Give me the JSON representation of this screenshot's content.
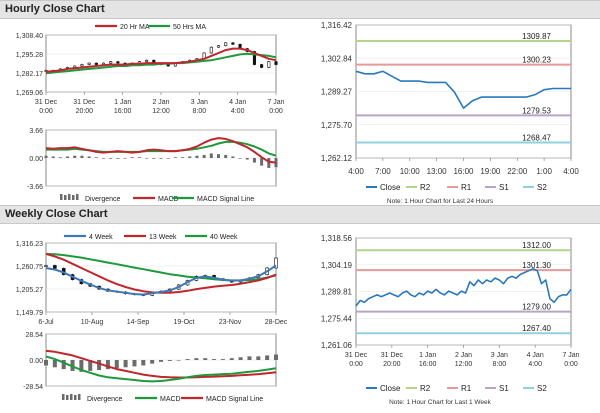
{
  "sections": {
    "hourly_title": "Hourly Close Chart",
    "weekly_title": "Weekly Close Chart"
  },
  "colors": {
    "ma_red": "#c0262d",
    "ma_green": "#1e9a3c",
    "macd_blue": "#3f78b6",
    "bar_gray": "#6b6b6b",
    "close_blue": "#2a78bd",
    "r2": "#b4d48a",
    "r1": "#e59a99",
    "s1": "#b7a4c9",
    "s2": "#8fd0dd"
  },
  "chart_data": [
    {
      "id": "hourly_price",
      "type": "line",
      "legend": [
        "20 Hr MA",
        "50 Hrs MA"
      ],
      "yticks": [
        "1,308.40",
        "1,295.28",
        "1,282.17",
        "1,269.06"
      ],
      "ylim": [
        1269.06,
        1308.4
      ],
      "xticks": [
        [
          "31 Dec",
          "0:00"
        ],
        [
          "31 Dec",
          "20:00"
        ],
        [
          "1 Jan",
          "16:00"
        ],
        [
          "2 Jan",
          "12:00"
        ],
        [
          "3 Jan",
          "8:00"
        ],
        [
          "4 Jan",
          "4:00"
        ],
        [
          "7 Jan",
          "0:00"
        ]
      ],
      "close": [
        1284,
        1283,
        1285,
        1286,
        1287,
        1288,
        1289,
        1288,
        1289,
        1290,
        1289,
        1288,
        1289,
        1290,
        1291,
        1289,
        1288,
        1287,
        1289,
        1290,
        1291,
        1292,
        1296,
        1300,
        1301,
        1303,
        1302,
        1299,
        1297,
        1288,
        1286,
        1290,
        1288
      ],
      "ma20": [
        1283,
        1283.5,
        1284,
        1285,
        1285.5,
        1286,
        1286.5,
        1287,
        1287.5,
        1288,
        1288,
        1288,
        1288.5,
        1288.5,
        1289,
        1289,
        1289,
        1289,
        1289,
        1289.5,
        1290,
        1291,
        1292,
        1294,
        1296,
        1298,
        1299,
        1299,
        1298,
        1296,
        1294,
        1292,
        1291
      ],
      "ma50": [
        1282,
        1282.5,
        1283,
        1283.5,
        1284,
        1284.5,
        1285,
        1285.5,
        1286,
        1286.5,
        1287,
        1287,
        1287.5,
        1287.5,
        1288,
        1288,
        1288.5,
        1288.5,
        1289,
        1289,
        1289.5,
        1290,
        1290.5,
        1291,
        1292,
        1293,
        1294,
        1295,
        1295.5,
        1295,
        1294.5,
        1294,
        1293
      ]
    },
    {
      "id": "hourly_macd",
      "type": "bar",
      "legend": [
        "Divergence",
        "MACD",
        "MACD Signal Line"
      ],
      "yticks": [
        "3.66",
        "0.00",
        "-3.66"
      ],
      "ylim": [
        -3.66,
        3.66
      ],
      "divergence": [
        0.3,
        0.2,
        0.1,
        0.2,
        0.3,
        0.3,
        0.2,
        0.1,
        0.0,
        -0.1,
        -0.1,
        0.0,
        0.1,
        0.1,
        0.0,
        -0.1,
        -0.1,
        0.0,
        0.1,
        0.1,
        0.2,
        0.3,
        0.4,
        0.6,
        0.5,
        0.4,
        0.2,
        0.0,
        -0.2,
        -0.6,
        -1.0,
        -1.3,
        -1.2
      ],
      "macd": [
        1.3,
        1.2,
        1.3,
        1.3,
        1.4,
        1.2,
        1.0,
        0.8,
        0.7,
        0.8,
        0.9,
        0.8,
        0.7,
        0.8,
        1.0,
        1.1,
        1.0,
        0.9,
        0.9,
        1.0,
        1.2,
        1.5,
        2.0,
        2.4,
        2.6,
        2.5,
        2.2,
        1.8,
        1.4,
        0.8,
        0.1,
        -0.5,
        -0.6
      ],
      "signal": [
        1.1,
        1.1,
        1.1,
        1.1,
        1.2,
        1.1,
        1.0,
        0.9,
        0.8,
        0.8,
        0.8,
        0.8,
        0.8,
        0.8,
        0.9,
        0.9,
        0.9,
        0.9,
        0.9,
        1.0,
        1.1,
        1.2,
        1.4,
        1.6,
        1.9,
        2.1,
        2.1,
        2.0,
        1.8,
        1.5,
        1.1,
        0.6,
        0.3
      ]
    },
    {
      "id": "hourly_pivot",
      "type": "line",
      "legend": [
        "Close",
        "R2",
        "R1",
        "S1",
        "S2"
      ],
      "note": "Note: 1 Hour Chart for Last 24 Hours",
      "yticks": [
        "1,316.42",
        "1,302.84",
        "1,289.27",
        "1,275.70",
        "1,262.12"
      ],
      "ylim": [
        1262.12,
        1316.42
      ],
      "xticks": [
        "4:00",
        "7:00",
        "10:00",
        "13:00",
        "16:00",
        "19:00",
        "22:00",
        "1:00",
        "4:00"
      ],
      "levels": {
        "R2": 1309.87,
        "R1": 1300.23,
        "S1": 1279.53,
        "S2": 1268.47
      },
      "level_labels": {
        "R2": "1309.87",
        "R1": "1300.23",
        "S1": "1279.53",
        "S2": "1268.47"
      },
      "close": [
        1297.5,
        1296.5,
        1296.5,
        1297.5,
        1295.5,
        1293.5,
        1293.5,
        1293.5,
        1293.0,
        1293.0,
        1293.0,
        1289.0,
        1282.5,
        1285.5,
        1287.0,
        1287.0,
        1287.0,
        1287.0,
        1287.0,
        1287.0,
        1288.0,
        1290.0,
        1290.5,
        1290.5,
        1290.5
      ]
    },
    {
      "id": "weekly_price",
      "type": "line",
      "legend": [
        "4 Week",
        "13 Week",
        "40 Week"
      ],
      "yticks": [
        "1,316.23",
        "1,260.75",
        "1,205.27",
        "1,149.79"
      ],
      "ylim": [
        1149.79,
        1316.23
      ],
      "xticks": [
        "6-Jul",
        "10-Aug",
        "14-Sep",
        "19-Oct",
        "23-Nov",
        "28-Dec"
      ],
      "close": [
        1262,
        1255,
        1240,
        1228,
        1218,
        1212,
        1205,
        1200,
        1198,
        1194,
        1192,
        1190,
        1196,
        1200,
        1205,
        1215,
        1226,
        1236,
        1238,
        1230,
        1226,
        1222,
        1226,
        1232,
        1240,
        1256,
        1280
      ],
      "ma4": [
        1256,
        1252,
        1245,
        1235,
        1225,
        1216,
        1208,
        1202,
        1199,
        1196,
        1193,
        1192,
        1195,
        1198,
        1202,
        1210,
        1222,
        1232,
        1236,
        1232,
        1228,
        1225,
        1226,
        1230,
        1236,
        1248,
        1262
      ],
      "ma13": [
        1290,
        1284,
        1276,
        1266,
        1256,
        1246,
        1236,
        1226,
        1217,
        1210,
        1204,
        1200,
        1197,
        1196,
        1196,
        1198,
        1201,
        1205,
        1208,
        1211,
        1213,
        1215,
        1218,
        1222,
        1226,
        1232,
        1240
      ],
      "ma40": [
        1290,
        1289,
        1287,
        1284,
        1281,
        1277,
        1273,
        1269,
        1265,
        1261,
        1257,
        1253,
        1249,
        1245,
        1241,
        1238,
        1235,
        1233,
        1231,
        1229,
        1227,
        1226,
        1226,
        1227,
        1229,
        1233,
        1238
      ]
    },
    {
      "id": "weekly_macd",
      "type": "bar",
      "legend": [
        "Divergence",
        "MACD",
        "MACD Signal Line"
      ],
      "yticks": [
        "28.54",
        "0.00",
        "-28.54"
      ],
      "ylim": [
        -28.54,
        28.54
      ],
      "divergence": [
        -6,
        -8,
        -10,
        -12,
        -13,
        -12,
        -11,
        -10,
        -9,
        -8,
        -7,
        -6,
        -4,
        -2,
        -1,
        0,
        1,
        2,
        2,
        1,
        1,
        2,
        3,
        4,
        4,
        5,
        6
      ],
      "macd": [
        4,
        1,
        -3,
        -7,
        -11,
        -14,
        -17,
        -19,
        -20,
        -21,
        -22,
        -23,
        -23.5,
        -23,
        -22,
        -20.5,
        -19,
        -17.5,
        -16.5,
        -16,
        -15.5,
        -15,
        -14,
        -13,
        -12,
        -10.5,
        -9
      ],
      "signal": [
        10,
        9,
        7,
        5,
        2,
        -1,
        -4,
        -7,
        -10,
        -12,
        -14,
        -16,
        -17.5,
        -18.5,
        -19,
        -19.2,
        -19.2,
        -19,
        -18.6,
        -18.2,
        -17.8,
        -17.4,
        -16.8,
        -16.2,
        -15.5,
        -14.5,
        -13.5
      ]
    },
    {
      "id": "weekly_pivot",
      "type": "line",
      "legend": [
        "Close",
        "R2",
        "R1",
        "S1",
        "S2"
      ],
      "note": "Note: 1 Hour Chart for Last 1 Week",
      "yticks": [
        "1,318.56",
        "1,304.19",
        "1,289.81",
        "1,275.44",
        "1,261.06"
      ],
      "ylim": [
        1261.06,
        1318.56
      ],
      "xticks": [
        [
          "31 Dec",
          "0:00"
        ],
        [
          "31 Dec",
          "20:00"
        ],
        [
          "1 Jan",
          "16:00"
        ],
        [
          "2 Jan",
          "12:00"
        ],
        [
          "3 Jan",
          "8:00"
        ],
        [
          "4 Jan",
          "4:00"
        ],
        [
          "7 Jan",
          "0:00"
        ]
      ],
      "levels": {
        "R2": 1312.0,
        "R1": 1301.3,
        "S1": 1279.0,
        "S2": 1267.4
      },
      "level_labels": {
        "R2": "1312.00",
        "R1": "1301.30",
        "S1": "1279.00",
        "S2": "1267.40"
      },
      "close": [
        1282,
        1285,
        1284,
        1286,
        1287,
        1288,
        1287,
        1288,
        1289,
        1288,
        1287,
        1289,
        1290,
        1288,
        1287,
        1289,
        1288,
        1290,
        1289,
        1291,
        1289,
        1288,
        1290,
        1289,
        1288,
        1290,
        1289,
        1295,
        1293,
        1296,
        1294,
        1296,
        1295,
        1297,
        1296,
        1294,
        1297,
        1298,
        1297,
        1299,
        1300,
        1301,
        1302,
        1301,
        1294,
        1296,
        1286,
        1284,
        1287,
        1288,
        1288,
        1291
      ]
    }
  ]
}
